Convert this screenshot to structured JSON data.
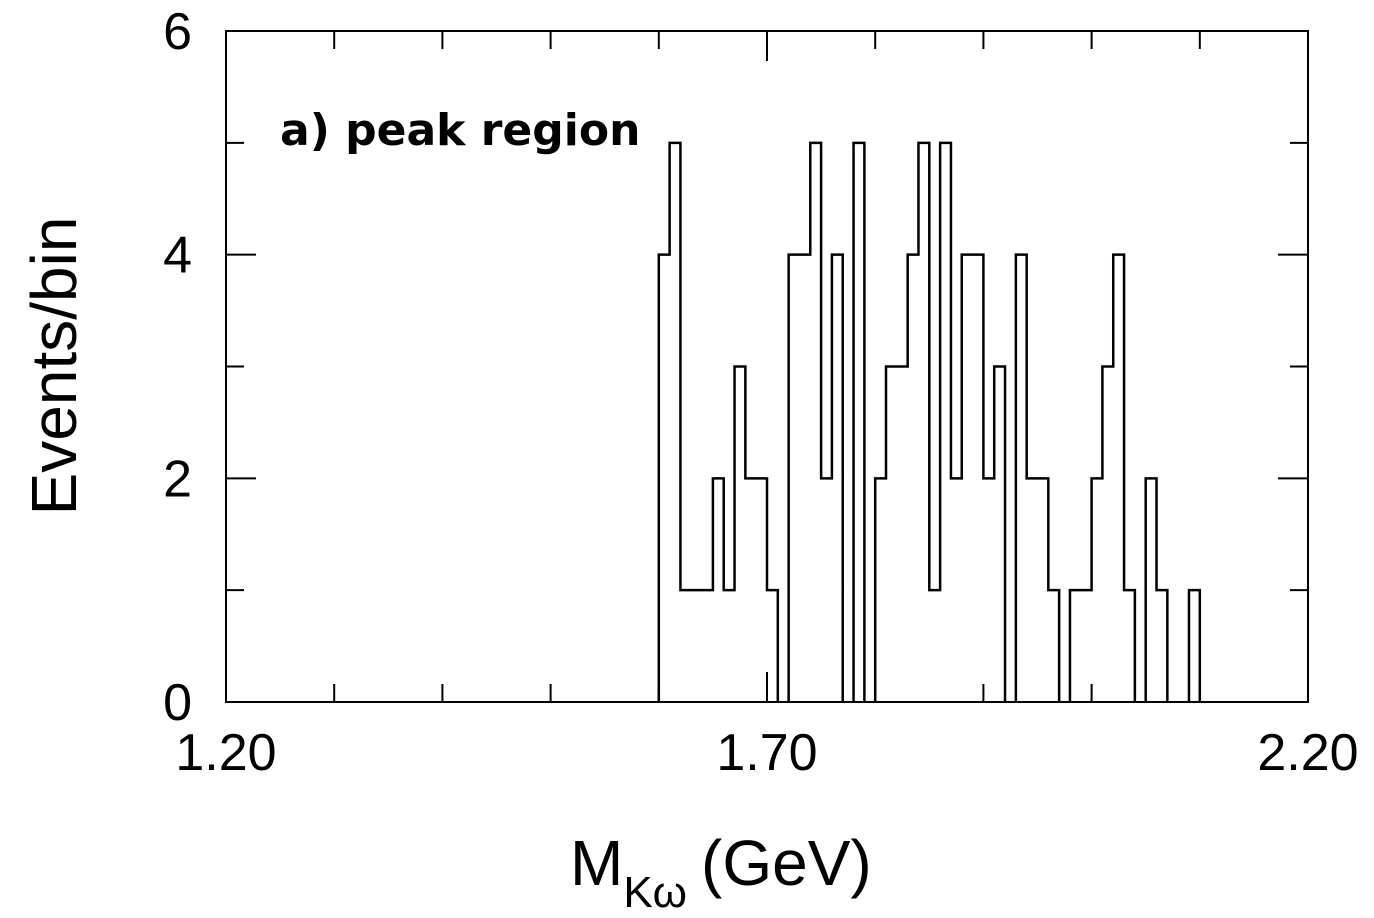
{
  "chart_data": {
    "type": "histogram",
    "annotation": "a) peak region",
    "xlabel": "M",
    "xlabel_subscript": "Kω",
    "xlabel_unit": "(GeV)",
    "ylabel": "Events/bin",
    "xlim": [
      1.2,
      2.2
    ],
    "ylim": [
      0,
      6
    ],
    "x_ticks": [
      {
        "value": 1.2,
        "label": "1.20"
      },
      {
        "value": 1.7,
        "label": "1.70"
      },
      {
        "value": 2.2,
        "label": "2.20"
      }
    ],
    "y_ticks": [
      {
        "value": 0,
        "label": "0"
      },
      {
        "value": 2,
        "label": "2"
      },
      {
        "value": 4,
        "label": "4"
      },
      {
        "value": 6,
        "label": "6"
      }
    ],
    "bin_width": 0.01,
    "bin_start": 1.6,
    "bin_counts": [
      4,
      5,
      1,
      1,
      1,
      2,
      1,
      3,
      2,
      2,
      1,
      0,
      4,
      4,
      5,
      2,
      4,
      0,
      5,
      0,
      2,
      3,
      3,
      4,
      5,
      1,
      5,
      2,
      4,
      4,
      2,
      3,
      0,
      4,
      2,
      2,
      1,
      0,
      1,
      1,
      2,
      3,
      4,
      1,
      0,
      2,
      1,
      0,
      0,
      1
    ],
    "grid": false,
    "x_minor_ticks": 10,
    "y_minor_ticks": 6,
    "line_color": "#000000"
  }
}
